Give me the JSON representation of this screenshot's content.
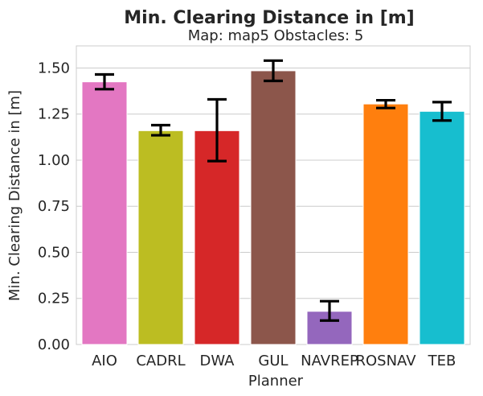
{
  "chart_data": {
    "type": "bar",
    "title": "Min. Clearing Distance in [m]",
    "subtitle": "Map: map5 Obstacles: 5",
    "xlabel": "Planner",
    "ylabel": "Min. Clearing Distance in [m]",
    "ylim": [
      0,
      1.62
    ],
    "yticks": [
      "0.00",
      "0.25",
      "0.50",
      "0.75",
      "1.00",
      "1.25",
      "1.50"
    ],
    "grid": "horizontal",
    "categories": [
      "AIO",
      "CADRL",
      "DWA",
      "GUL",
      "NAVREP",
      "ROSNAV",
      "TEB"
    ],
    "values": [
      1.425,
      1.16,
      1.16,
      1.485,
      0.18,
      1.305,
      1.265
    ],
    "error_low": [
      1.385,
      1.135,
      0.995,
      1.43,
      0.13,
      1.283,
      1.215
    ],
    "error_high": [
      1.465,
      1.19,
      1.33,
      1.54,
      0.235,
      1.325,
      1.315
    ],
    "colors": [
      "#e377c2",
      "#bcbd22",
      "#d62728",
      "#8c564b",
      "#9467bd",
      "#ff7f0e",
      "#17becf"
    ]
  }
}
